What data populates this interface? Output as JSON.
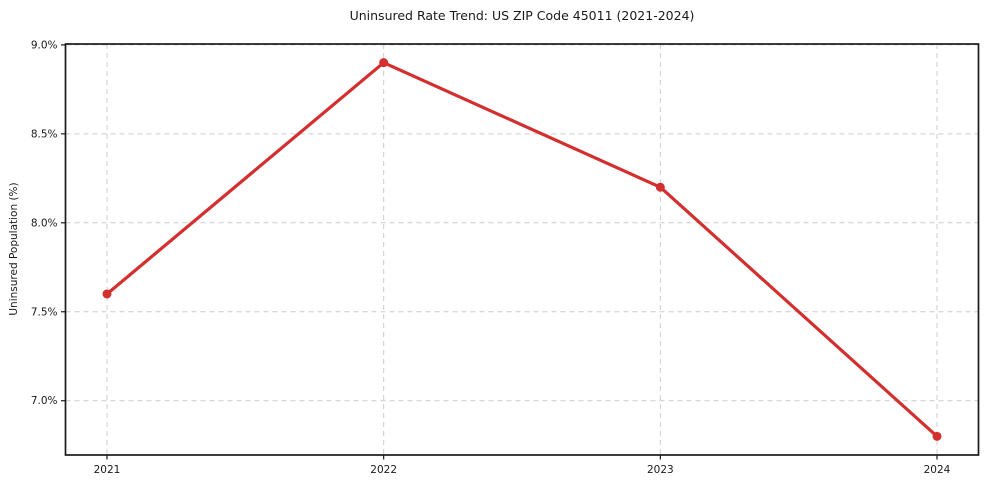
{
  "figure": {
    "title": "Uninsured Rate Trend: US ZIP Code 45011 (2021-2024)"
  },
  "chart_data": {
    "type": "line",
    "title": "Uninsured Rate Trend: US ZIP Code 45011 (2021-2024)",
    "xlabel": "",
    "ylabel": "Uninsured Population (%)",
    "x": [
      2021,
      2022,
      2023,
      2024
    ],
    "x_tick_labels": [
      "2021",
      "2022",
      "2023",
      "2024"
    ],
    "series": [
      {
        "name": "Uninsured Rate",
        "values": [
          7.6,
          8.9,
          8.2,
          6.8
        ]
      }
    ],
    "y_ticks": [
      7.0,
      7.5,
      8.0,
      8.5,
      9.0
    ],
    "y_tick_labels": [
      "7.0%",
      "7.5%",
      "8.0%",
      "8.5%",
      "9.0%"
    ],
    "xlim": [
      2020.85,
      2024.15
    ],
    "ylim": [
      6.695,
      9.005
    ],
    "grid": true,
    "grid_style": "dashed",
    "legend": "none",
    "line_color": "#d32f2f",
    "marker": "circle",
    "grid_color": "#cccccc",
    "frame_color": "#1a1a1a",
    "background_color": "#ffffff"
  }
}
